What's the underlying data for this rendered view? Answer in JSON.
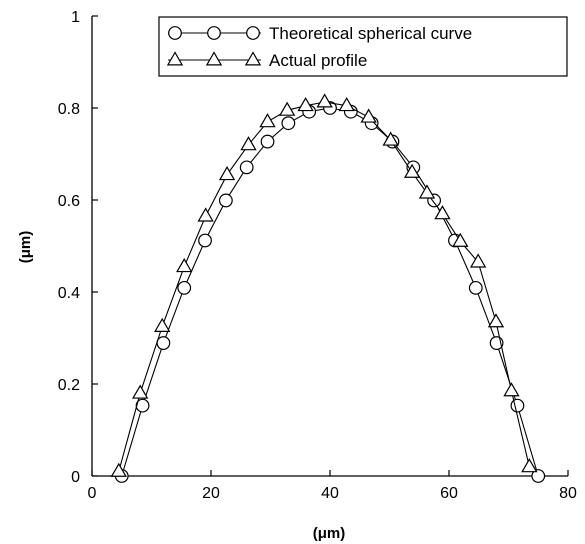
{
  "chart_data": {
    "type": "line",
    "title": "",
    "xlabel": "(μm)",
    "ylabel": "(μm)",
    "xlim": [
      0,
      80
    ],
    "ylim": [
      0,
      1
    ],
    "xticks": [
      0,
      20,
      40,
      60,
      80
    ],
    "yticks": [
      0,
      0.2,
      0.4,
      0.6,
      0.8,
      1
    ],
    "ytick_labels": [
      "0",
      "0.2",
      "0.4",
      "0.6",
      "0.8",
      "1"
    ],
    "grid": false,
    "legend_position": "top-right",
    "series": [
      {
        "name": "Theoretical spherical curve",
        "marker": "circle",
        "x": [
          5,
          8.5,
          12,
          15.5,
          19,
          22.5,
          26,
          29.5,
          33,
          36.5,
          40,
          43.5,
          47,
          50.5,
          54,
          57.5,
          61,
          64.5,
          68,
          71.5,
          75
        ],
        "y": [
          0,
          0.153,
          0.289,
          0.409,
          0.512,
          0.599,
          0.671,
          0.727,
          0.767,
          0.792,
          0.8,
          0.792,
          0.767,
          0.727,
          0.671,
          0.599,
          0.512,
          0.409,
          0.289,
          0.153,
          0
        ]
      },
      {
        "name": "Actual profile",
        "marker": "triangle",
        "x": [
          4.5,
          8.1,
          11.8,
          15.5,
          19.1,
          22.7,
          26.3,
          29.5,
          32.8,
          35.9,
          39.1,
          42.8,
          46.5,
          50.2,
          53.8,
          56.3,
          58.9,
          61.9,
          64.9,
          67.9,
          70.5,
          73.5
        ],
        "y": [
          0.01,
          0.18,
          0.325,
          0.455,
          0.565,
          0.655,
          0.72,
          0.77,
          0.795,
          0.805,
          0.813,
          0.805,
          0.78,
          0.73,
          0.66,
          0.615,
          0.57,
          0.51,
          0.465,
          0.335,
          0.185,
          0.02
        ]
      }
    ]
  }
}
